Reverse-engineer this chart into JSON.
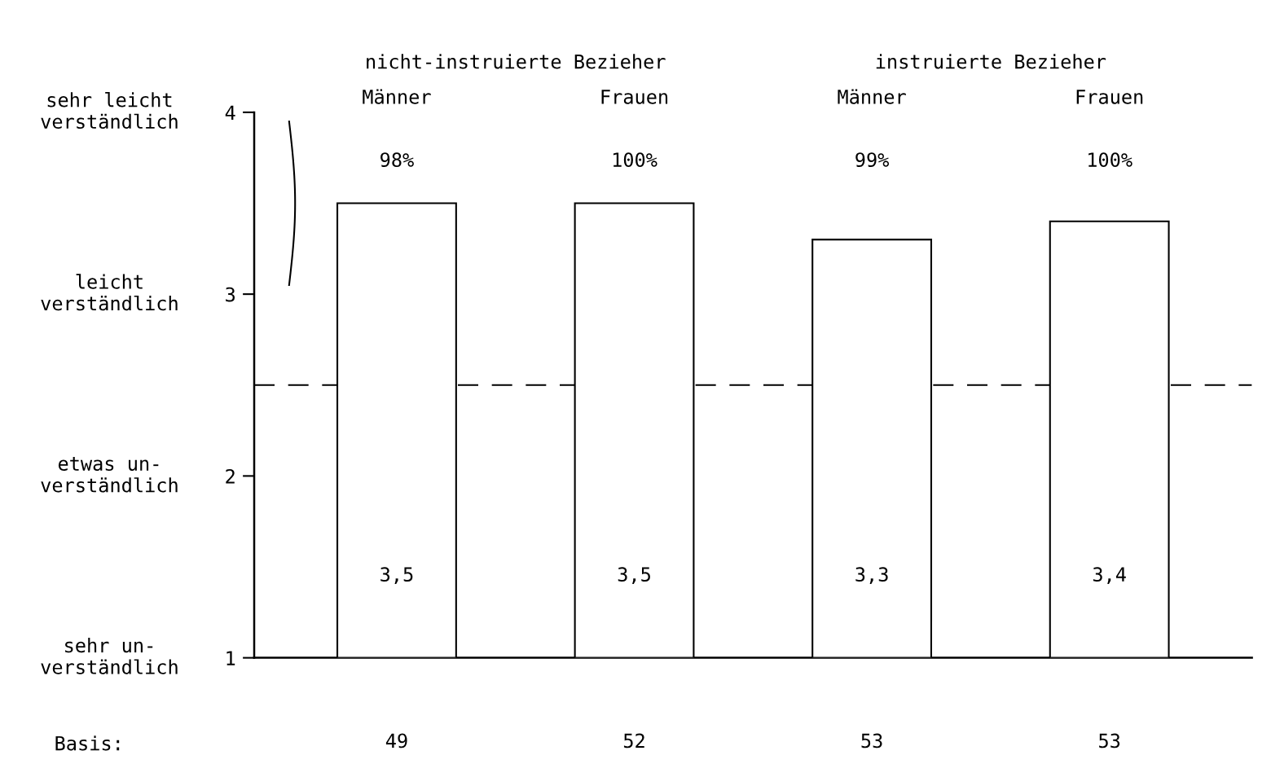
{
  "chart_data": {
    "type": "bar",
    "categories": [
      "Männer",
      "Frauen",
      "Männer",
      "Frauen"
    ],
    "values": [
      3.5,
      3.5,
      3.3,
      3.4
    ],
    "value_labels": [
      "3,5",
      "3,5",
      "3,3",
      "3,4"
    ],
    "color": "#ffffff",
    "ylim": [
      1,
      4
    ],
    "yticks": [
      1,
      2,
      3,
      4
    ],
    "ref_lines": [
      {
        "axis": "y",
        "value": 2.5,
        "color": "#000000",
        "line_style": "dashed"
      }
    ],
    "annotations": [
      "nicht-instruierte Bezieher",
      "instruierte Bezieher",
      "98%",
      "100%",
      "99%",
      "100%",
      "Basis:",
      "49",
      "52",
      "53",
      "53",
      "sehr leicht\nverständlich",
      "leicht\nverständlich",
      "etwas un-\nverständlich",
      "sehr un-\nverständlich"
    ],
    "grid": false,
    "legend": false
  }
}
